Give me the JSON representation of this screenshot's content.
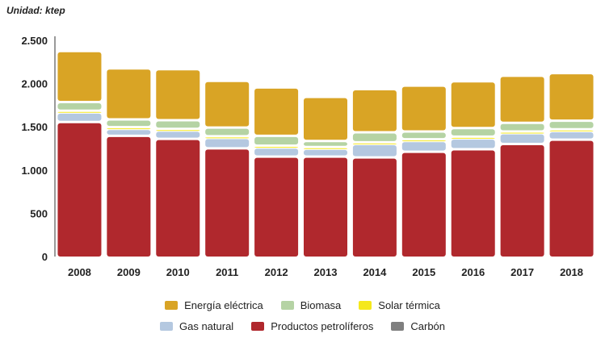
{
  "chart_data": {
    "type": "bar",
    "stacked": true,
    "unit_label": "Unidad: ktep",
    "categories": [
      "2008",
      "2009",
      "2010",
      "2011",
      "2012",
      "2013",
      "2014",
      "2015",
      "2016",
      "2017",
      "2018"
    ],
    "ylim": [
      0,
      2500
    ],
    "yticks": [
      {
        "value": 0,
        "label": "0"
      },
      {
        "value": 500,
        "label": "500"
      },
      {
        "value": 1000,
        "label": "1.000"
      },
      {
        "value": 1500,
        "label": "1.500"
      },
      {
        "value": 2000,
        "label": "2.000"
      },
      {
        "value": 2500,
        "label": "2.500"
      }
    ],
    "series": [
      {
        "name": "Productos petrolíferos",
        "color": "#b0282d",
        "values": [
          1570,
          1410,
          1375,
          1265,
          1170,
          1170,
          1160,
          1225,
          1255,
          1315,
          1365
        ]
      },
      {
        "name": "Carbón",
        "color": "#7f7f7f",
        "values": [
          0,
          0,
          0,
          0,
          0,
          0,
          0,
          0,
          0,
          0,
          0
        ]
      },
      {
        "name": "Gas natural",
        "color": "#b4c8e0",
        "values": [
          110,
          80,
          95,
          120,
          105,
          90,
          155,
          125,
          125,
          125,
          100
        ]
      },
      {
        "name": "Solar térmica",
        "color": "#f5e81c",
        "values": [
          20,
          20,
          20,
          20,
          20,
          20,
          20,
          20,
          20,
          20,
          20
        ]
      },
      {
        "name": "Biomasa",
        "color": "#b5d3a4",
        "values": [
          100,
          90,
          100,
          100,
          115,
          70,
          115,
          90,
          100,
          100,
          100
        ]
      },
      {
        "name": "Energía eléctrica",
        "color": "#d9a425",
        "values": [
          590,
          590,
          590,
          540,
          560,
          510,
          500,
          530,
          540,
          545,
          550
        ]
      }
    ],
    "legend": {
      "row1": [
        "Energía eléctrica",
        "Biomasa",
        "Solar térmica"
      ],
      "row2": [
        "Gas natural",
        "Productos petrolíferos",
        "Carbón"
      ]
    }
  }
}
